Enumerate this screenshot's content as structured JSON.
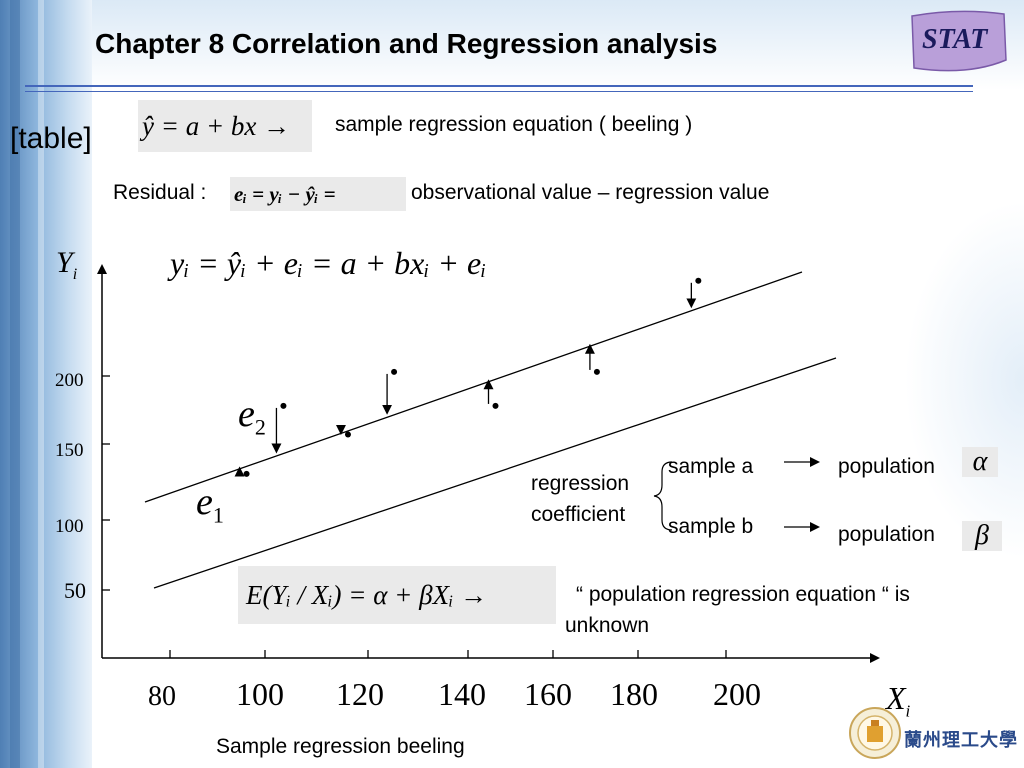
{
  "title": "Chapter 8 Correlation and Regression analysis",
  "badge": "STAT",
  "tag": "[table]",
  "sample_eq": {
    "formula": "ŷ = a + bx →",
    "caption": "sample regression equation ( beeling )"
  },
  "residual": {
    "label": "Residual :",
    "formula": "eᵢ = yᵢ − ŷᵢ =",
    "caption": "observational value – regression value"
  },
  "main_eq": "yᵢ = ŷᵢ + eᵢ = a + bxᵢ + eᵢ",
  "axes": {
    "y_label": "Y",
    "y_sub": "i",
    "x_label": "X",
    "x_sub": "i",
    "y_ticks": [
      "200",
      "150",
      "100",
      "50"
    ],
    "x_ticks": [
      "80",
      "100",
      "120",
      "140",
      "160",
      "180",
      "200"
    ]
  },
  "residual_labels": {
    "e2": "e",
    "e2_sub": "2",
    "e1": "e",
    "e1_sub": "1"
  },
  "coefficient": {
    "label_line1": "regression",
    "label_line2": "coefficient",
    "sample_a": "sample a",
    "sample_b": "sample b",
    "population_a": "population",
    "population_b": "population",
    "alpha": "α",
    "beta": "β"
  },
  "population_eq": {
    "formula": "E(Yᵢ / Xᵢ) = α + βXᵢ →",
    "caption_line1": "“ population regression equation “ is",
    "caption_line2": "unknown"
  },
  "footer_caption": "Sample regression beeling",
  "university_logo_text": "蘭州理工大學",
  "chart_data": {
    "type": "scatter",
    "points": [
      {
        "x": 96,
        "y": 128
      },
      {
        "x": 104,
        "y": 178
      },
      {
        "x": 118,
        "y": 157
      },
      {
        "x": 128,
        "y": 203
      },
      {
        "x": 150,
        "y": 178
      },
      {
        "x": 172,
        "y": 203
      },
      {
        "x": 194,
        "y": 270
      }
    ],
    "lines": [
      "sample regression line",
      "population regression line"
    ]
  }
}
